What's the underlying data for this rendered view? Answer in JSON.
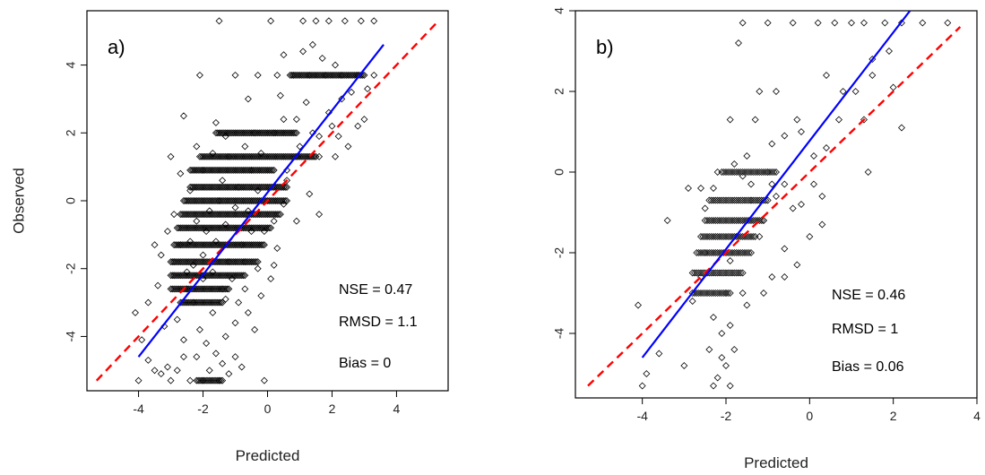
{
  "colors": {
    "points": "#000000",
    "fit_line": "#0000ff",
    "reference_line": "#ff0000",
    "frame": "#000000"
  },
  "chart_data": [
    {
      "type": "scatter",
      "panel_label": "a)",
      "xlabel": "Predicted",
      "ylabel": "Observed",
      "xlim": [
        -5.6,
        5.6
      ],
      "ylim": [
        -5.6,
        5.6
      ],
      "xticks": [
        -4,
        -2,
        0,
        2,
        4
      ],
      "yticks": [
        -4,
        -2,
        0,
        2,
        4
      ],
      "tick_labels_x": [
        "-4",
        "-2",
        "0",
        "2",
        "4"
      ],
      "tick_labels_y": [
        "-4",
        "-2",
        "0",
        "2",
        "4"
      ],
      "stats": [
        "NSE =  0.47",
        "RMSD = 1.1",
        "Bias = 0"
      ],
      "fit_line": {
        "x": [
          -4.0,
          3.6
        ],
        "y": [
          -4.6,
          4.6
        ]
      },
      "reference_line": {
        "x": [
          -5.3,
          5.3
        ],
        "y": [
          -5.3,
          5.3
        ]
      },
      "points": [
        [
          -1.5,
          5.3
        ],
        [
          0.1,
          5.3
        ],
        [
          1.1,
          5.3
        ],
        [
          1.5,
          5.3
        ],
        [
          1.9,
          5.3
        ],
        [
          2.4,
          5.3
        ],
        [
          2.9,
          5.3
        ],
        [
          3.3,
          5.3
        ],
        [
          -2.1,
          3.7
        ],
        [
          -1.0,
          3.7
        ],
        [
          -0.3,
          3.7
        ],
        [
          0.3,
          3.7
        ],
        [
          0.8,
          3.7
        ],
        [
          1.3,
          3.7
        ],
        [
          1.8,
          3.7
        ],
        [
          2.3,
          3.7
        ],
        [
          2.8,
          3.7
        ],
        [
          3.3,
          3.7
        ],
        [
          0.5,
          4.3
        ],
        [
          1.4,
          4.6
        ],
        [
          1.7,
          4.2
        ],
        [
          2.1,
          4.0
        ],
        [
          2.6,
          3.2
        ],
        [
          1.1,
          4.4
        ],
        [
          -0.6,
          3.0
        ],
        [
          0.4,
          3.1
        ],
        [
          1.2,
          2.9
        ],
        [
          1.9,
          2.6
        ],
        [
          2.2,
          1.9
        ],
        [
          2.5,
          1.6
        ],
        [
          3.0,
          2.4
        ],
        [
          -0.4,
          2.0
        ],
        [
          0.2,
          2.0
        ],
        [
          0.9,
          1.3
        ],
        [
          1.6,
          1.3
        ],
        [
          2.1,
          1.3
        ],
        [
          -2.0,
          0.9
        ],
        [
          -1.2,
          1.3
        ],
        [
          -0.5,
          0.9
        ],
        [
          0.6,
          0.6
        ],
        [
          1.3,
          0.2
        ],
        [
          1.6,
          -0.4
        ],
        [
          -2.6,
          2.5
        ],
        [
          -2.2,
          1.6
        ],
        [
          -1.7,
          1.4
        ],
        [
          -1.4,
          0.6
        ],
        [
          -0.9,
          0.4
        ],
        [
          -0.6,
          -0.3
        ],
        [
          0.2,
          -0.6
        ],
        [
          0.5,
          -0.1
        ],
        [
          0.9,
          -0.6
        ],
        [
          -2.4,
          0.3
        ],
        [
          -2.9,
          -0.4
        ],
        [
          -3.1,
          -0.9
        ],
        [
          -3.3,
          -1.6
        ],
        [
          -2.7,
          -1.3
        ],
        [
          -2.2,
          -0.6
        ],
        [
          -1.8,
          -0.3
        ],
        [
          -1.3,
          -0.7
        ],
        [
          -0.8,
          -1.3
        ],
        [
          -0.5,
          -0.9
        ],
        [
          -0.1,
          -0.9
        ],
        [
          0.3,
          -1.4
        ],
        [
          -0.3,
          -2.0
        ],
        [
          0.1,
          -2.3
        ],
        [
          -0.7,
          -1.8
        ],
        [
          -3.4,
          -2.5
        ],
        [
          -2.9,
          -2.2
        ],
        [
          -2.5,
          -2.6
        ],
        [
          -2.3,
          -1.9
        ],
        [
          -2.0,
          -1.6
        ],
        [
          -1.7,
          -2.1
        ],
        [
          -1.4,
          -2.6
        ],
        [
          -1.1,
          -2.3
        ],
        [
          -0.9,
          -3.0
        ],
        [
          -0.6,
          -3.3
        ],
        [
          -2.8,
          -3.5
        ],
        [
          -2.3,
          -3.0
        ],
        [
          -2.1,
          -3.8
        ],
        [
          -1.9,
          -4.2
        ],
        [
          -1.6,
          -4.5
        ],
        [
          -1.3,
          -4.0
        ],
        [
          -1.0,
          -4.6
        ],
        [
          -2.6,
          -4.1
        ],
        [
          -3.1,
          -4.9
        ],
        [
          -2.8,
          -5.0
        ],
        [
          -2.4,
          -5.3
        ],
        [
          -2.0,
          -5.3
        ],
        [
          -1.8,
          -5.0
        ],
        [
          -1.5,
          -5.3
        ],
        [
          -3.5,
          -5.0
        ],
        [
          -3.0,
          -5.3
        ],
        [
          -1.2,
          -5.1
        ],
        [
          -0.8,
          -4.9
        ],
        [
          -4.1,
          -3.3
        ],
        [
          -3.9,
          -4.1
        ],
        [
          -3.7,
          -4.7
        ],
        [
          -4.0,
          -5.3
        ],
        [
          -3.3,
          -5.1
        ],
        [
          -1.0,
          -3.6
        ],
        [
          -0.4,
          -3.8
        ],
        [
          -0.2,
          -2.8
        ],
        [
          0.2,
          -1.9
        ],
        [
          -2.0,
          -2.3
        ],
        [
          -1.6,
          -1.2
        ],
        [
          -1.2,
          -1.8
        ],
        [
          -2.4,
          -1.2
        ],
        [
          -1.5,
          0.0
        ],
        [
          -2.7,
          0.8
        ],
        [
          -3.0,
          1.3
        ],
        [
          -1.6,
          2.3
        ],
        [
          -0.2,
          1.4
        ],
        [
          0.5,
          2.4
        ],
        [
          2.3,
          3.0
        ],
        [
          3.1,
          3.3
        ],
        [
          2.8,
          2.2
        ],
        [
          1.6,
          1.9
        ],
        [
          0.9,
          2.4
        ],
        [
          -0.1,
          -5.3
        ],
        [
          -2.2,
          -4.6
        ],
        [
          -1.7,
          -3.3
        ],
        [
          -1.3,
          -2.9
        ],
        [
          -0.7,
          -2.6
        ],
        [
          -2.5,
          -2.1
        ],
        [
          -2.9,
          -1.8
        ],
        [
          -1.9,
          -0.9
        ],
        [
          -1.0,
          -0.2
        ],
        [
          -0.3,
          0.3
        ],
        [
          0.6,
          0.9
        ],
        [
          1.0,
          1.6
        ],
        [
          1.4,
          2.0
        ],
        [
          2.0,
          2.2
        ],
        [
          -1.3,
          1.9
        ],
        [
          -0.7,
          1.6
        ],
        [
          -3.5,
          -1.3
        ],
        [
          -3.7,
          -3.0
        ],
        [
          -3.2,
          -3.7
        ],
        [
          -2.6,
          -4.6
        ],
        [
          -1.4,
          -4.8
        ]
      ],
      "point_bands": [
        {
          "y": 3.7,
          "x_from": 0.7,
          "x_to": 3.0
        },
        {
          "y": 2.0,
          "x_from": -1.6,
          "x_to": 0.9
        },
        {
          "y": 1.3,
          "x_from": -2.1,
          "x_to": 1.5
        },
        {
          "y": 0.9,
          "x_from": -2.4,
          "x_to": 0.2
        },
        {
          "y": 0.4,
          "x_from": -2.4,
          "x_to": 0.6
        },
        {
          "y": 0.0,
          "x_from": -2.6,
          "x_to": 0.6
        },
        {
          "y": -0.4,
          "x_from": -2.7,
          "x_to": 0.4
        },
        {
          "y": -0.8,
          "x_from": -2.8,
          "x_to": 0.1
        },
        {
          "y": -1.3,
          "x_from": -2.9,
          "x_to": -0.1
        },
        {
          "y": -1.8,
          "x_from": -3.0,
          "x_to": -0.3
        },
        {
          "y": -2.2,
          "x_from": -3.0,
          "x_to": -0.7
        },
        {
          "y": -2.6,
          "x_from": -3.0,
          "x_to": -1.2
        },
        {
          "y": -3.0,
          "x_from": -2.7,
          "x_to": -1.4
        },
        {
          "y": -5.3,
          "x_from": -2.2,
          "x_to": -1.4
        }
      ]
    },
    {
      "type": "scatter",
      "panel_label": "b)",
      "xlabel": "Predicted",
      "ylabel": "",
      "xlim": [
        -5.6,
        4.0
      ],
      "ylim": [
        -5.6,
        4.0
      ],
      "xticks": [
        -4,
        -2,
        0,
        2,
        4
      ],
      "yticks": [
        -4,
        -2,
        0,
        2,
        4
      ],
      "tick_labels_x": [
        "-4",
        "-2",
        "0",
        "2",
        "4"
      ],
      "tick_labels_y": [
        "-4",
        "-2",
        "0",
        "2",
        "4"
      ],
      "stats": [
        "NSE =  0.46",
        "RMSD = 1",
        "Bias = 0.06"
      ],
      "fit_line": {
        "x": [
          -4.0,
          2.4
        ],
        "y": [
          -4.6,
          4.0
        ]
      },
      "reference_line": {
        "x": [
          -5.3,
          3.6
        ],
        "y": [
          -5.3,
          3.6
        ]
      },
      "points": [
        [
          -1.6,
          3.7
        ],
        [
          -1.0,
          3.7
        ],
        [
          -0.4,
          3.7
        ],
        [
          0.2,
          3.7
        ],
        [
          0.6,
          3.7
        ],
        [
          1.0,
          3.7
        ],
        [
          1.3,
          3.7
        ],
        [
          1.8,
          3.7
        ],
        [
          2.2,
          3.7
        ],
        [
          2.7,
          3.7
        ],
        [
          3.3,
          3.7
        ],
        [
          -1.7,
          3.2
        ],
        [
          1.9,
          3.0
        ],
        [
          1.5,
          2.8
        ],
        [
          1.5,
          2.4
        ],
        [
          0.4,
          2.4
        ],
        [
          2.0,
          2.1
        ],
        [
          1.1,
          2.0
        ],
        [
          0.8,
          2.0
        ],
        [
          -0.8,
          2.0
        ],
        [
          -1.2,
          2.0
        ],
        [
          -1.3,
          1.3
        ],
        [
          -1.9,
          1.3
        ],
        [
          -0.3,
          1.3
        ],
        [
          0.7,
          1.3
        ],
        [
          1.3,
          1.3
        ],
        [
          2.2,
          1.1
        ],
        [
          0.4,
          0.6
        ],
        [
          0.1,
          0.4
        ],
        [
          1.4,
          0.0
        ],
        [
          -0.6,
          -0.3
        ],
        [
          0.3,
          -0.6
        ],
        [
          -2.3,
          -0.4
        ],
        [
          -2.6,
          -0.4
        ],
        [
          -2.9,
          -0.4
        ],
        [
          -3.4,
          -1.2
        ],
        [
          -0.8,
          -0.6
        ],
        [
          -0.4,
          -0.9
        ],
        [
          0.3,
          -1.3
        ],
        [
          0.0,
          -1.6
        ],
        [
          -0.6,
          -1.9
        ],
        [
          -0.3,
          -2.3
        ],
        [
          -0.9,
          -2.6
        ],
        [
          -2.6,
          -2.6
        ],
        [
          -2.8,
          -3.2
        ],
        [
          -2.3,
          -3.6
        ],
        [
          -2.1,
          -4.0
        ],
        [
          -1.8,
          -4.4
        ],
        [
          -2.4,
          -4.4
        ],
        [
          -2.0,
          -4.8
        ],
        [
          -3.0,
          -4.8
        ],
        [
          -3.6,
          -4.5
        ],
        [
          -3.9,
          -5.0
        ],
        [
          -2.3,
          -5.3
        ],
        [
          -1.9,
          -5.3
        ],
        [
          -4.0,
          -5.3
        ],
        [
          -4.1,
          -3.3
        ],
        [
          -1.5,
          -3.3
        ],
        [
          -1.1,
          -3.0
        ],
        [
          -0.6,
          -2.6
        ],
        [
          -1.4,
          -0.7
        ],
        [
          -1.6,
          -0.1
        ],
        [
          -1.8,
          0.2
        ],
        [
          -0.9,
          0.7
        ],
        [
          -0.6,
          0.9
        ],
        [
          -0.2,
          1.0
        ],
        [
          -1.5,
          0.4
        ],
        [
          -2.2,
          0.0
        ],
        [
          0.1,
          -0.3
        ],
        [
          -0.2,
          -0.8
        ],
        [
          -1.2,
          -1.6
        ],
        [
          -1.9,
          -2.2
        ],
        [
          -2.5,
          -2.0
        ],
        [
          -1.1,
          -1.2
        ],
        [
          -2.2,
          -5.1
        ],
        [
          -2.1,
          -4.6
        ],
        [
          -1.9,
          -3.8
        ],
        [
          -1.6,
          -3.0
        ],
        [
          -2.0,
          -3.0
        ],
        [
          -2.5,
          -0.9
        ],
        [
          -1.4,
          -0.3
        ],
        [
          -1.0,
          0.0
        ],
        [
          -0.9,
          -0.3
        ]
      ],
      "point_bands": [
        {
          "y": 0.0,
          "x_from": -2.1,
          "x_to": -0.8
        },
        {
          "y": -0.7,
          "x_from": -2.4,
          "x_to": -1.0
        },
        {
          "y": -1.2,
          "x_from": -2.5,
          "x_to": -1.1
        },
        {
          "y": -1.6,
          "x_from": -2.6,
          "x_to": -1.3
        },
        {
          "y": -2.0,
          "x_from": -2.7,
          "x_to": -1.4
        },
        {
          "y": -2.5,
          "x_from": -2.8,
          "x_to": -1.6
        },
        {
          "y": -3.0,
          "x_from": -2.8,
          "x_to": -1.9
        }
      ]
    }
  ]
}
